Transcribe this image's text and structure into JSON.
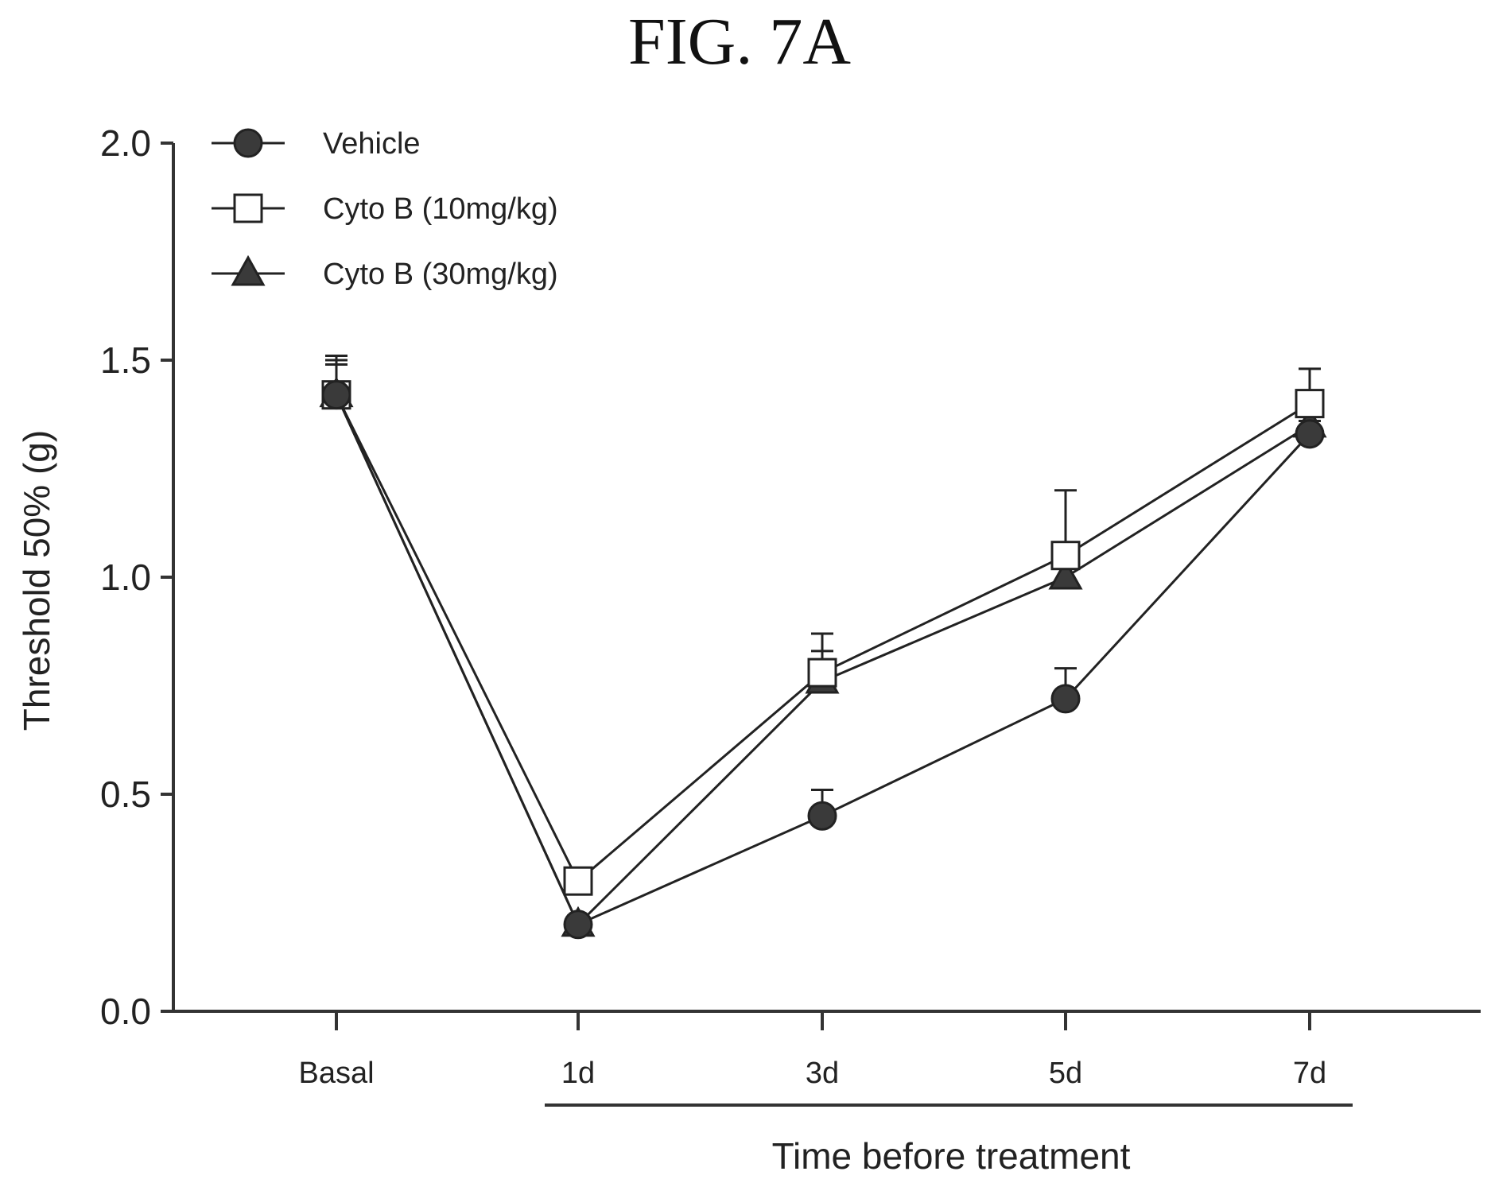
{
  "figure_title": "FIG. 7A",
  "chart_data": {
    "type": "line",
    "categories": [
      "Basal",
      "1d",
      "3d",
      "5d",
      "7d"
    ],
    "ylabel": "Threshold 50% (g)",
    "xlabel": "Time before treatment",
    "ylim": [
      0,
      2.0
    ],
    "yticks": [
      "0.0",
      "0.5",
      "1.0",
      "1.5",
      "2.0"
    ],
    "ytick_values": [
      0,
      0.5,
      1.0,
      1.5,
      2.0
    ],
    "legend_position": "top-left",
    "grid": false,
    "series": [
      {
        "name": "Vehicle",
        "marker": "filled-circle",
        "values": [
          1.42,
          0.2,
          0.45,
          0.72,
          1.33
        ],
        "errors": [
          0.08,
          0.02,
          0.06,
          0.07,
          0.03
        ]
      },
      {
        "name": "Cyto B (10mg/kg)",
        "marker": "open-square",
        "values": [
          1.42,
          0.3,
          0.78,
          1.05,
          1.4
        ],
        "errors": [
          0.09,
          0.02,
          0.09,
          0.15,
          0.08
        ]
      },
      {
        "name": "Cyto B (30mg/kg)",
        "marker": "filled-triangle",
        "values": [
          1.42,
          0.2,
          0.76,
          1.0,
          1.35
        ],
        "errors": [
          0.07,
          0.02,
          0.07,
          0.07,
          0.08
        ]
      }
    ]
  }
}
